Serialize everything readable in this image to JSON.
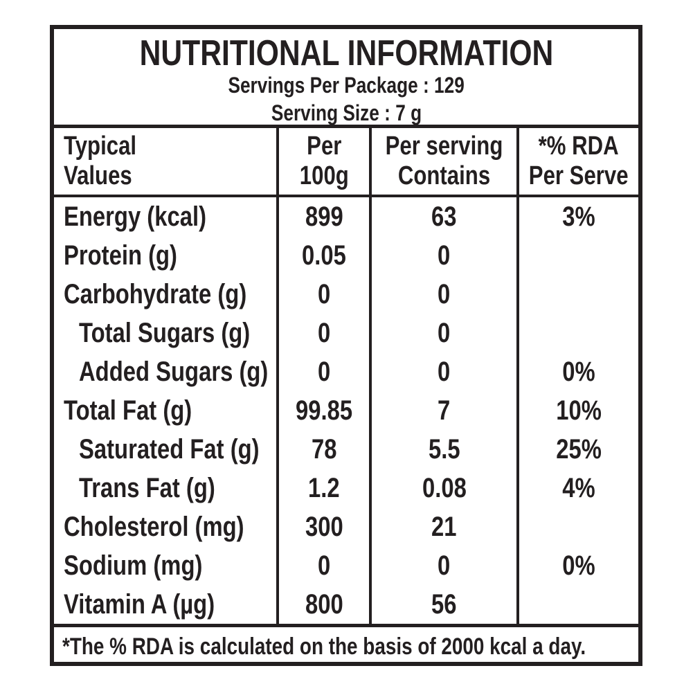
{
  "header": {
    "title": "NUTRITIONAL INFORMATION",
    "servings_per_package": "Servings Per Package : 129",
    "serving_size": "Serving Size : 7 g"
  },
  "table": {
    "columns": [
      {
        "line1": "Typical",
        "line2": "Values"
      },
      {
        "line1": "Per",
        "line2": "100g"
      },
      {
        "line1": "Per serving",
        "line2": "Contains"
      },
      {
        "line1": "*% RDA",
        "line2": "Per Serve"
      }
    ],
    "rows": [
      {
        "label": "Energy (kcal)",
        "per_100g": "899",
        "per_serving": "63",
        "rda_per_serve": "3%",
        "indent": false
      },
      {
        "label": "Protein (g)",
        "per_100g": "0.05",
        "per_serving": "0",
        "rda_per_serve": "",
        "indent": false
      },
      {
        "label": "Carbohydrate (g)",
        "per_100g": "0",
        "per_serving": "0",
        "rda_per_serve": "",
        "indent": false
      },
      {
        "label": "Total Sugars (g)",
        "per_100g": "0",
        "per_serving": "0",
        "rda_per_serve": "",
        "indent": true
      },
      {
        "label": "Added Sugars (g)",
        "per_100g": "0",
        "per_serving": "0",
        "rda_per_serve": "0%",
        "indent": true
      },
      {
        "label": "Total Fat (g)",
        "per_100g": "99.85",
        "per_serving": "7",
        "rda_per_serve": "10%",
        "indent": false
      },
      {
        "label": "Saturated Fat (g)",
        "per_100g": "78",
        "per_serving": "5.5",
        "rda_per_serve": "25%",
        "indent": true
      },
      {
        "label": "Trans Fat (g)",
        "per_100g": "1.2",
        "per_serving": "0.08",
        "rda_per_serve": "4%",
        "indent": true
      },
      {
        "label": "Cholesterol (mg)",
        "per_100g": "300",
        "per_serving": "21",
        "rda_per_serve": "",
        "indent": false
      },
      {
        "label": "Sodium (mg)",
        "per_100g": "0",
        "per_serving": "0",
        "rda_per_serve": "0%",
        "indent": false
      },
      {
        "label": "Vitamin A (µg)",
        "per_100g": "800",
        "per_serving": "56",
        "rda_per_serve": "",
        "indent": false
      }
    ]
  },
  "footnote": "*The % RDA is calculated on the basis of 2000 kcal a day."
}
